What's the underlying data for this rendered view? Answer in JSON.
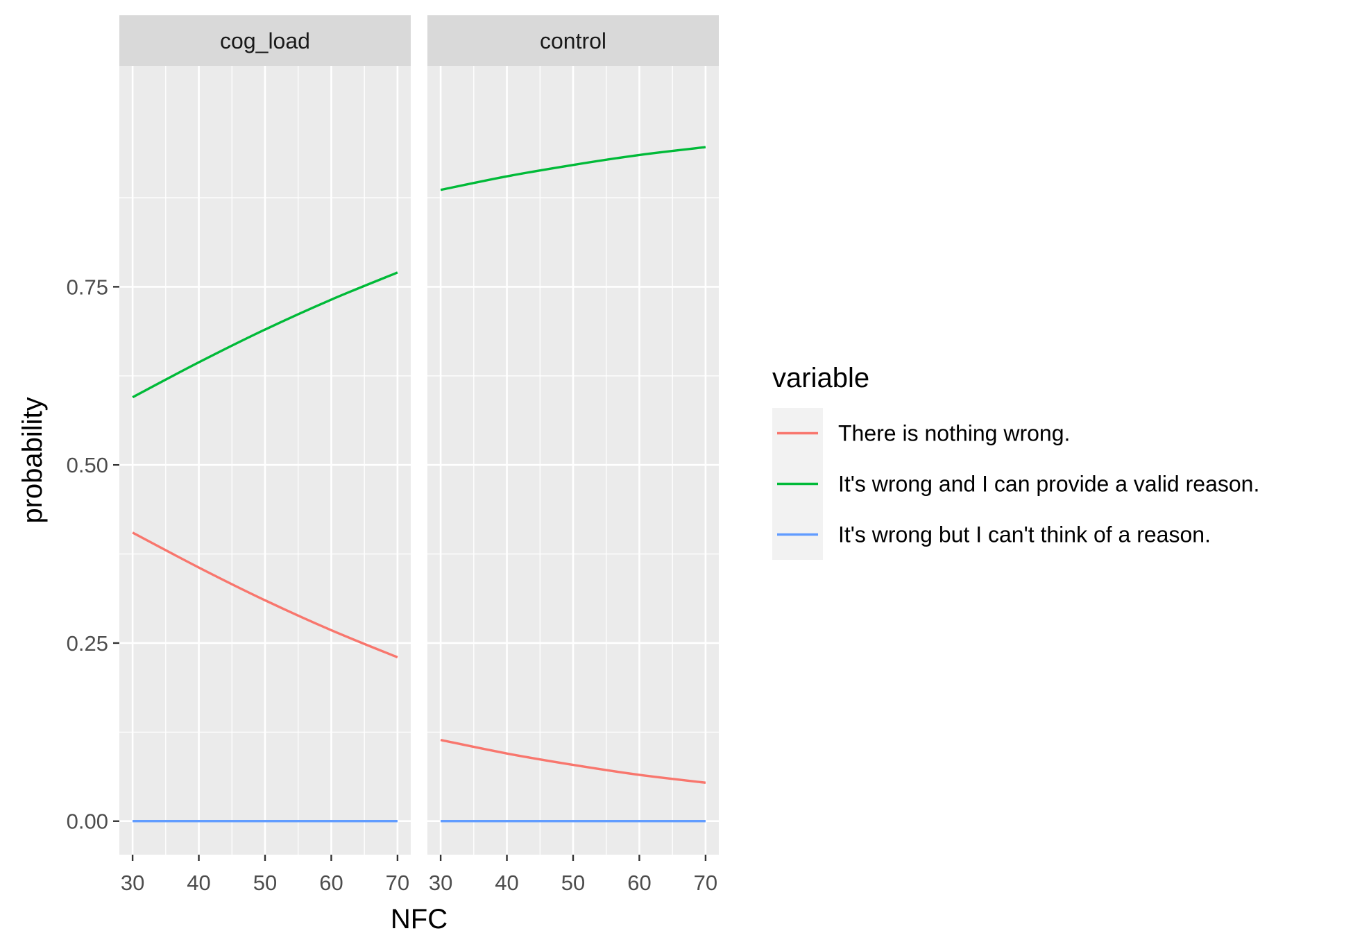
{
  "chart_data": {
    "type": "line",
    "xlabel": "NFC",
    "ylabel": "probability",
    "x_ticks": [
      30,
      40,
      50,
      60,
      70
    ],
    "y_ticks": [
      0,
      0.25,
      0.5,
      0.75
    ],
    "y_tick_labels": [
      "0.00",
      "0.25",
      "0.50",
      "0.75"
    ],
    "xlim": [
      28,
      72
    ],
    "ylim": [
      -0.047,
      1.06
    ],
    "grid": true,
    "legend_position": "right",
    "legend": {
      "title": "variable",
      "entries": [
        {
          "label": "There is nothing wrong.",
          "color": "#F8766D"
        },
        {
          "label": "It's wrong and I can provide a valid reason.",
          "color": "#00BA38"
        },
        {
          "label": "It's wrong but I can't think of a reason.",
          "color": "#619CFF"
        }
      ]
    },
    "panels": [
      {
        "title": "cog_load",
        "x": [
          30,
          40,
          50,
          60,
          70
        ],
        "series": [
          {
            "name": "There is nothing wrong.",
            "color": "#F8766D",
            "values": [
              0.405,
              0.356,
              0.31,
              0.268,
              0.23
            ]
          },
          {
            "name": "It's wrong and I can provide a valid reason.",
            "color": "#00BA38",
            "values": [
              0.595,
              0.644,
              0.69,
              0.732,
              0.77
            ]
          },
          {
            "name": "It's wrong but I can't think of a reason.",
            "color": "#619CFF",
            "values": [
              0.0,
              0.0,
              0.0,
              0.0,
              0.0
            ]
          }
        ]
      },
      {
        "title": "control",
        "x": [
          30,
          40,
          50,
          60,
          70
        ],
        "series": [
          {
            "name": "There is nothing wrong.",
            "color": "#F8766D",
            "values": [
              0.114,
              0.095,
              0.079,
              0.065,
              0.054
            ]
          },
          {
            "name": "It's wrong and I can provide a valid reason.",
            "color": "#00BA38",
            "values": [
              0.886,
              0.905,
              0.921,
              0.935,
              0.946
            ]
          },
          {
            "name": "It's wrong but I can't think of a reason.",
            "color": "#619CFF",
            "values": [
              0.0,
              0.0,
              0.0,
              0.0,
              0.0
            ]
          }
        ]
      }
    ]
  }
}
